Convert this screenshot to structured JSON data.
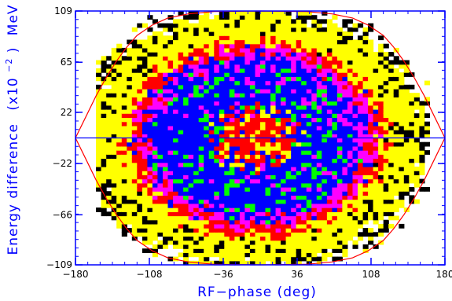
{
  "chart_data": {
    "type": "heatmap",
    "title": "",
    "xlabel": "RF−phase (deg)",
    "ylabel": {
      "main": "Energy difference",
      "scale_open": "(x10",
      "scale_exp": "−2",
      "scale_close": ")",
      "unit": "MeV"
    },
    "xlim": [
      -180,
      180
    ],
    "ylim": [
      -109,
      109
    ],
    "x_ticks": [
      {
        "value": -180,
        "label": "−180"
      },
      {
        "value": -108,
        "label": "−108"
      },
      {
        "value": -36,
        "label": "−36"
      },
      {
        "value": 36,
        "label": "36"
      },
      {
        "value": 108,
        "label": "108"
      },
      {
        "value": 180,
        "label": "180"
      }
    ],
    "y_ticks": [
      {
        "value": 109,
        "label": "109"
      },
      {
        "value": 65,
        "label": "65"
      },
      {
        "value": 22,
        "label": "22"
      },
      {
        "value": -22,
        "label": "−22"
      },
      {
        "value": -66,
        "label": "−66"
      },
      {
        "value": -109,
        "label": "−109"
      }
    ],
    "separatrix": {
      "color": "#ff0000",
      "points": [
        [
          -180,
          0
        ],
        [
          -170,
          18
        ],
        [
          -160,
          36
        ],
        [
          -150,
          52
        ],
        [
          -140,
          66
        ],
        [
          -130,
          78
        ],
        [
          -120,
          88
        ],
        [
          -105,
          97
        ],
        [
          -90,
          103
        ],
        [
          -70,
          106.5
        ],
        [
          -45,
          108.5
        ],
        [
          0,
          109
        ],
        [
          45,
          108.5
        ],
        [
          70,
          106.5
        ],
        [
          90,
          103
        ],
        [
          105,
          97
        ],
        [
          120,
          88
        ],
        [
          130,
          78
        ],
        [
          140,
          66
        ],
        [
          150,
          52
        ],
        [
          160,
          36
        ],
        [
          170,
          18
        ],
        [
          180,
          0
        ]
      ]
    },
    "axis_line": {
      "y": 0,
      "color": "#0000ff"
    },
    "density_levels": [
      {
        "level": 1,
        "color": "#000000"
      },
      {
        "level": 2,
        "color": "#ffff00"
      },
      {
        "level": 3,
        "color": "#ff0000"
      },
      {
        "level": 4,
        "color": "#ff00ff"
      },
      {
        "level": 5,
        "color": "#0000ff"
      },
      {
        "level": 6,
        "color": "#00ff00"
      }
    ],
    "density_grid": {
      "x_range": [
        -160,
        165
      ],
      "y_range": [
        -109,
        109
      ],
      "bins_x": 65,
      "bins_y": 62,
      "center": [
        -5,
        0
      ],
      "level_by_radius": [
        {
          "r_max": 0.3,
          "level": 3
        },
        {
          "r_max": 0.78,
          "level": 5
        },
        {
          "r_max": 0.88,
          "level": 4
        },
        {
          "r_max": 0.96,
          "level": 3
        },
        {
          "r_max": 1.25,
          "level": 2
        },
        {
          "r_max": 1.36,
          "level": 1
        }
      ]
    },
    "grid": false,
    "legend": "none"
  }
}
